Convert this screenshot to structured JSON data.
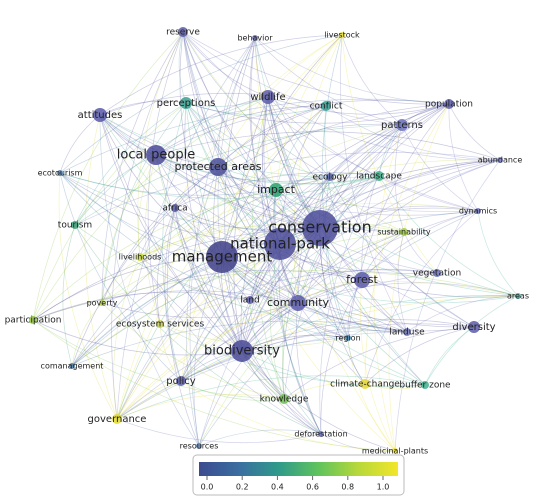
{
  "nodes": [
    {
      "label": "reserve",
      "color": "#5a5aa8"
    },
    {
      "label": "behavior",
      "color": "#6870b0"
    },
    {
      "label": "livestock",
      "color": "#e8e030"
    },
    {
      "label": "perceptions",
      "color": "#3aa090"
    },
    {
      "label": "wildlife",
      "color": "#5a5aa8"
    },
    {
      "label": "conflict",
      "color": "#30a090"
    },
    {
      "label": "population",
      "color": "#5a5aa8"
    },
    {
      "label": "attitudes",
      "color": "#5858a8"
    },
    {
      "label": "patterns",
      "color": "#6a70b8"
    },
    {
      "label": "abundance",
      "color": "#7078c0"
    },
    {
      "label": "local people",
      "color": "#4a4a98"
    },
    {
      "label": "protected areas",
      "color": "#4a4e98"
    },
    {
      "label": "ecotourism",
      "color": "#4c7aa8"
    },
    {
      "label": "ecology",
      "color": "#5a6aa8"
    },
    {
      "label": "landscape",
      "color": "#40b08a"
    },
    {
      "label": "impact",
      "color": "#28a070"
    },
    {
      "label": "dynamics",
      "color": "#7070b8"
    },
    {
      "label": "africa",
      "color": "#5a5aa8"
    },
    {
      "label": "tourism",
      "color": "#40a078"
    },
    {
      "label": "sustainability",
      "color": "#a0d040"
    },
    {
      "label": "conservation",
      "color": "#4a4a98"
    },
    {
      "label": "national-park",
      "color": "#4a4a98"
    },
    {
      "label": "management",
      "color": "#3e3e88"
    },
    {
      "label": "livelihoods",
      "color": "#c8d840"
    },
    {
      "label": "vegetation",
      "color": "#6a70b8"
    },
    {
      "label": "forest",
      "color": "#5858a8"
    },
    {
      "label": "areas",
      "color": "#40b0a0"
    },
    {
      "label": "poverty",
      "color": "#b0d040"
    },
    {
      "label": "land",
      "color": "#5a5aa8"
    },
    {
      "label": "community",
      "color": "#5a5aa8"
    },
    {
      "label": "participation",
      "color": "#90c840"
    },
    {
      "label": "ecosystem services",
      "color": "#c8cc50"
    },
    {
      "label": "landuse",
      "color": "#7078b8"
    },
    {
      "label": "region",
      "color": "#4080a8"
    },
    {
      "label": "diversity",
      "color": "#5a5aa8"
    },
    {
      "label": "biodiversity",
      "color": "#4a4a98"
    },
    {
      "label": "comanagement",
      "color": "#4a7aa8"
    },
    {
      "label": "policy",
      "color": "#5a5aa8"
    },
    {
      "label": "climate-change",
      "color": "#e8d830"
    },
    {
      "label": "buffer zone",
      "color": "#40b090"
    },
    {
      "label": "knowledge",
      "color": "#70c050"
    },
    {
      "label": "governance",
      "color": "#e0d830"
    },
    {
      "label": "deforestation",
      "color": "#6a70b8"
    },
    {
      "label": "resources",
      "color": "#5a80b0"
    },
    {
      "label": "medicinal-plants",
      "color": "#f0e030"
    }
  ],
  "color_scale": {
    "lim": [
      0,
      1
    ],
    "ticks": [
      {
        "value": 0,
        "label": "0.0"
      },
      0.2,
      0.4,
      0.6,
      0.8,
      {
        "value": 1,
        "label": "1.0"
      }
    ],
    "colors": [
      "#3b4b8f",
      "#3a6ea0",
      "#2f9a8a",
      "#5fc35c",
      "#b7d83a",
      "#f2e62a"
    ]
  }
}
